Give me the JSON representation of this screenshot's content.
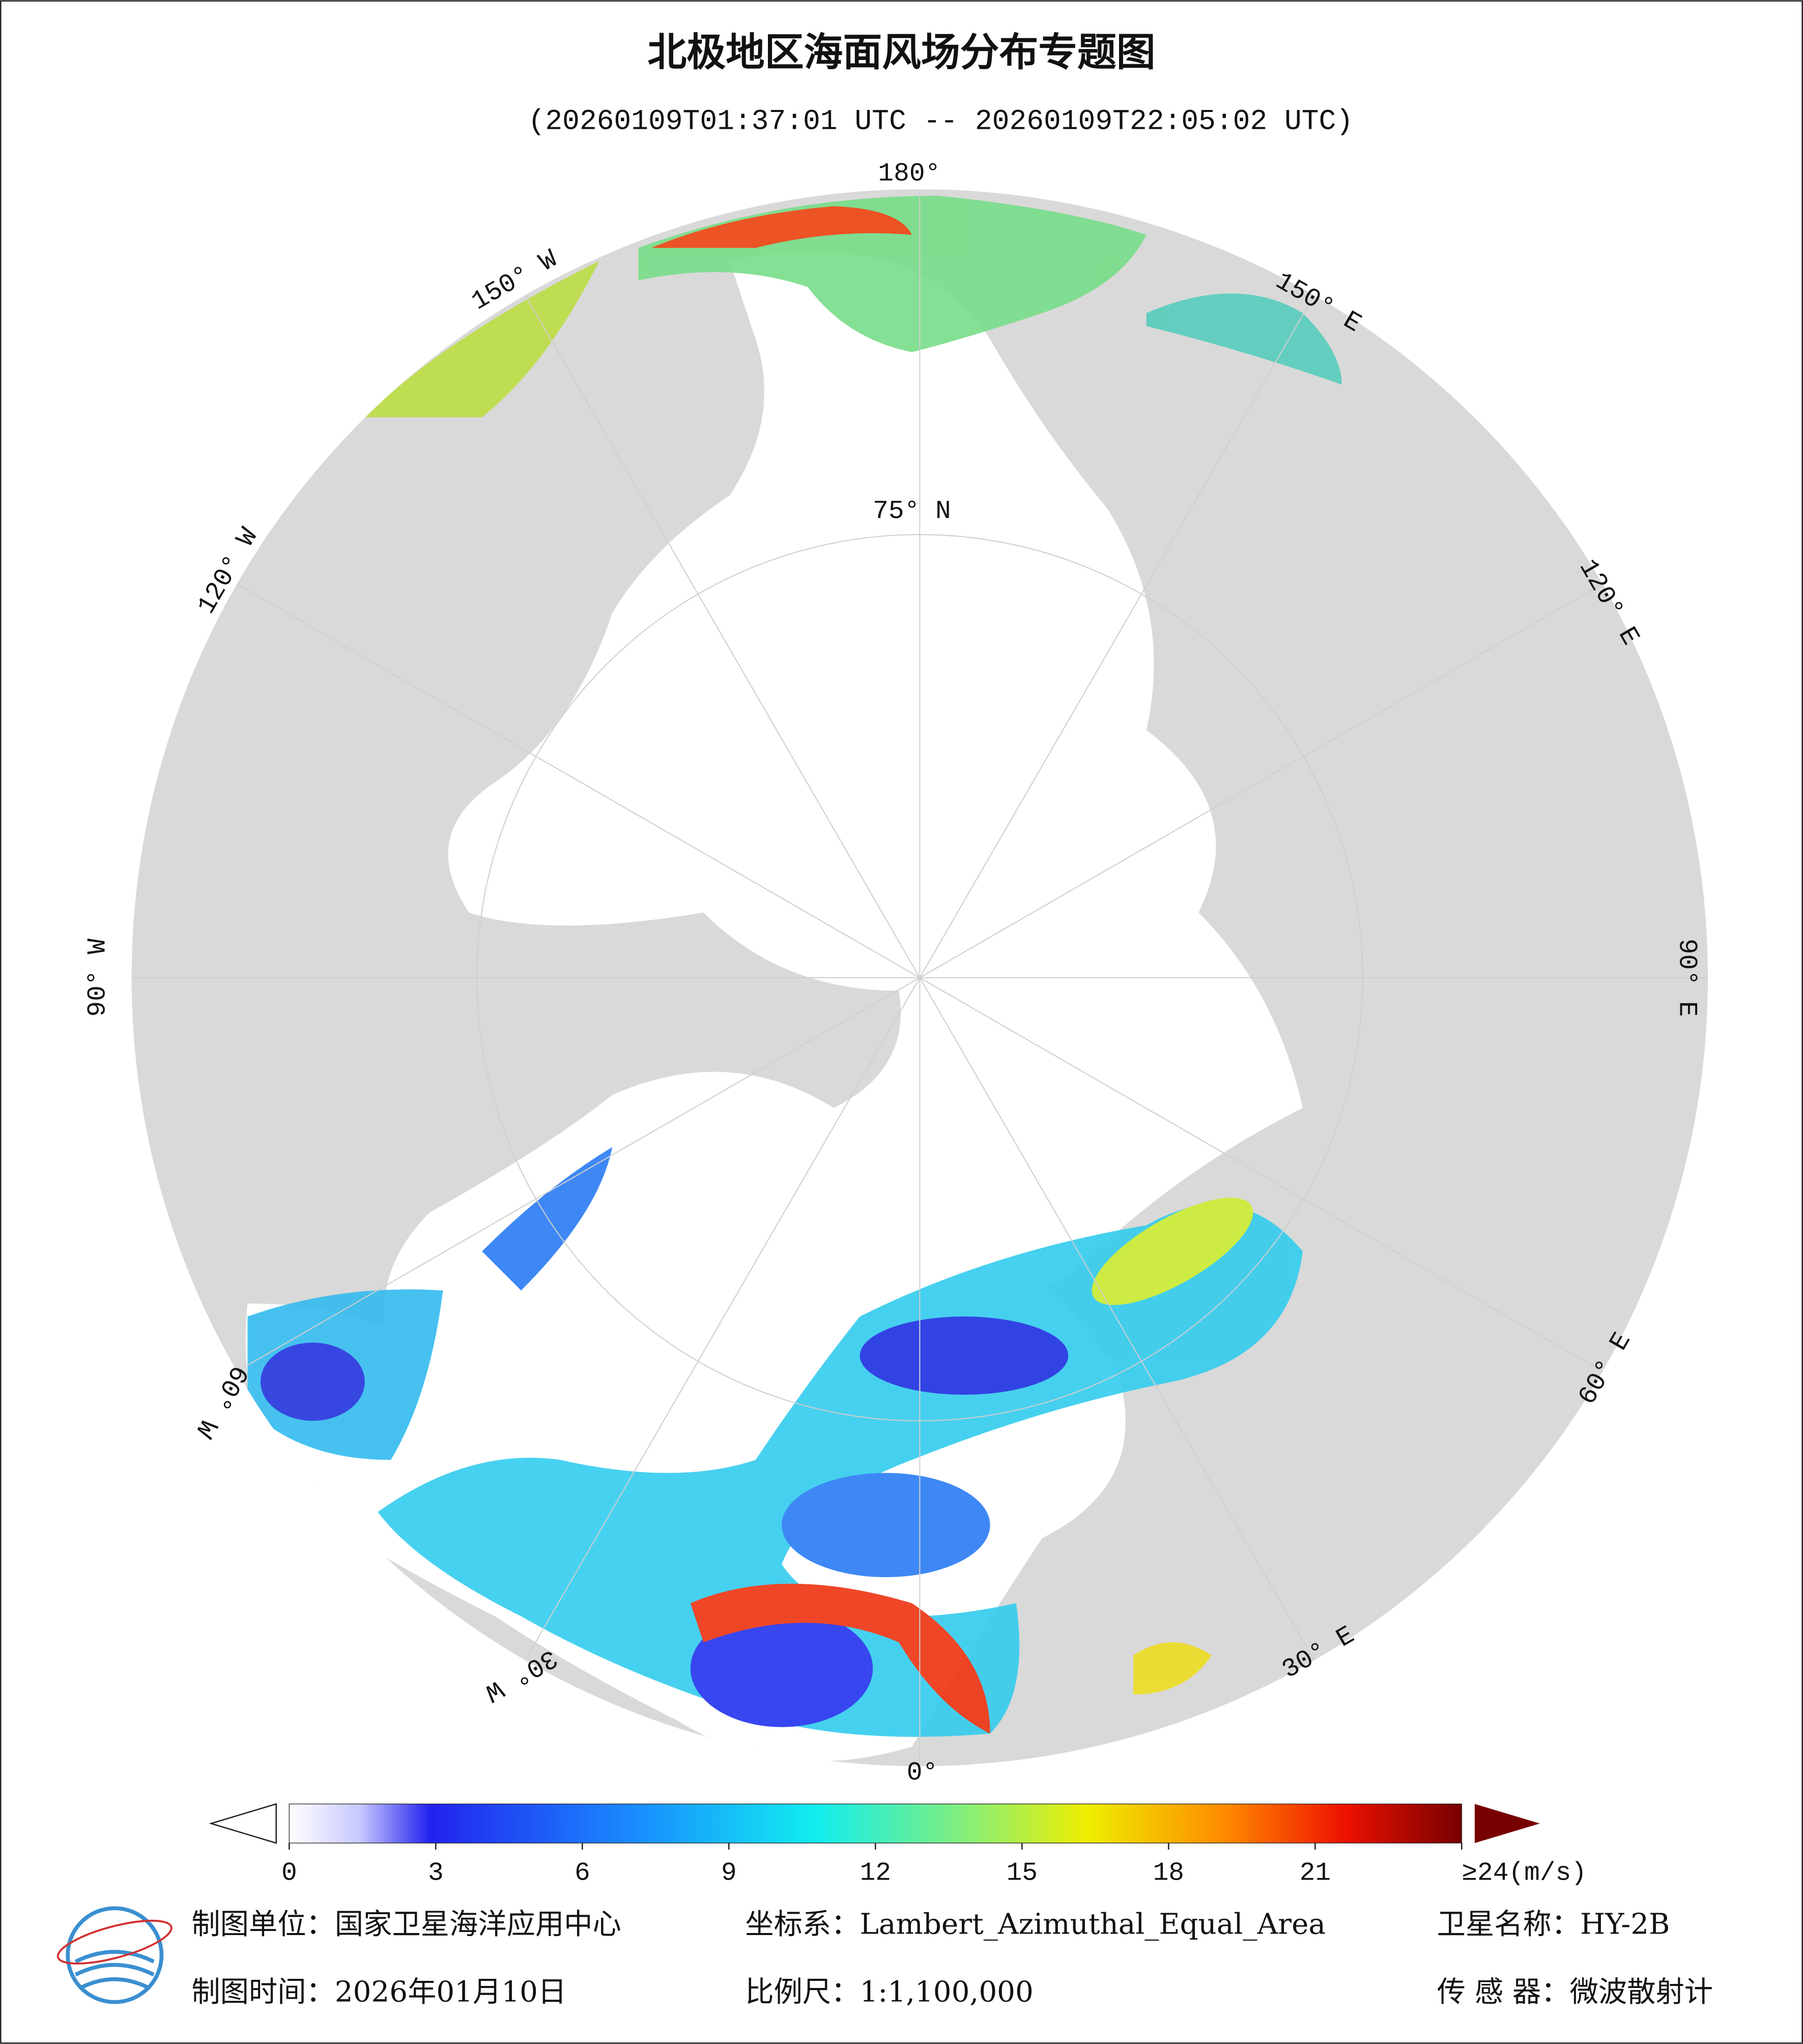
{
  "title": "北极地区海面风场分布专题图",
  "subtitle": "(20260109T01:37:01 UTC -- 20260109T22:05:02 UTC)",
  "graticule_labels": {
    "lon_180": "180°",
    "lon_150w": "150° W",
    "lon_120w": "120° W",
    "lon_90w": "90° W",
    "lon_60w": "60° W",
    "lon_30w": "30° W",
    "lon_0": "0°",
    "lon_30e": "30° E",
    "lon_60e": "60° E",
    "lon_90e": "90° E",
    "lon_120e": "120° E",
    "lon_150e": "150° E",
    "lat_75n": "75° N"
  },
  "colorbar": {
    "ticks": [
      0,
      3,
      6,
      9,
      12,
      15,
      18,
      21,
      {
        "value": 24,
        "label": "≥24(m/s)"
      }
    ]
  },
  "footer": {
    "unit": "制图单位：国家卫星海洋应用中心",
    "projection": "坐标系：Lambert_Azimuthal_Equal_Area",
    "satellite": "卫星名称：HY-2B",
    "date": "制图时间：2026年01月10日",
    "scale": "比例尺：1:1,100,000",
    "sensor": "传 感 器：微波散射计"
  }
}
